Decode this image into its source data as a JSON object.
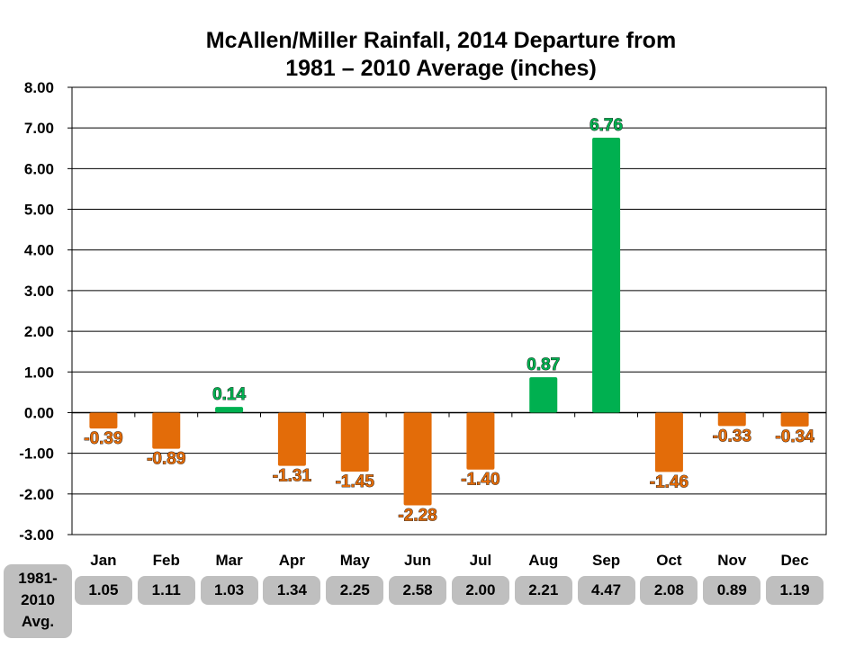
{
  "chart_data": {
    "type": "bar",
    "title_lines": [
      "McAllen/Miller Rainfall, 2014 Departure from",
      "1981 – 2010 Average (inches)"
    ],
    "categories": [
      "Jan",
      "Feb",
      "Mar",
      "Apr",
      "May",
      "Jun",
      "Jul",
      "Aug",
      "Sep",
      "Oct",
      "Nov",
      "Dec"
    ],
    "values": [
      -0.39,
      -0.89,
      0.14,
      -1.31,
      -1.45,
      -2.28,
      -1.4,
      0.87,
      6.76,
      -1.46,
      -0.33,
      -0.34
    ],
    "value_labels": [
      "-0.39",
      "-0.89",
      "0.14",
      "-1.31",
      "-1.45",
      "-2.28",
      "-1.40",
      "0.87",
      "6.76",
      "-1.46",
      "-0.33",
      "-0.34"
    ],
    "ylim": [
      -3,
      8
    ],
    "y_ticks": [
      8,
      7,
      6,
      5,
      4,
      3,
      2,
      1,
      0,
      -1,
      -2,
      -3
    ],
    "y_tick_labels": [
      "8.00",
      "7.00",
      "6.00",
      "5.00",
      "4.00",
      "3.00",
      "2.00",
      "1.00",
      "0.00",
      "-1.00",
      "-2.00",
      "-3.00"
    ],
    "grid": true,
    "colors": {
      "positive": "#00b050",
      "negative": "#e36c09",
      "label_outline": "#000000"
    }
  },
  "averages": {
    "label_lines": [
      "1981-",
      "2010",
      "Avg."
    ],
    "values": [
      "1.05",
      "1.11",
      "1.03",
      "1.34",
      "2.25",
      "2.58",
      "2.00",
      "2.21",
      "4.47",
      "2.08",
      "0.89",
      "1.19"
    ]
  }
}
